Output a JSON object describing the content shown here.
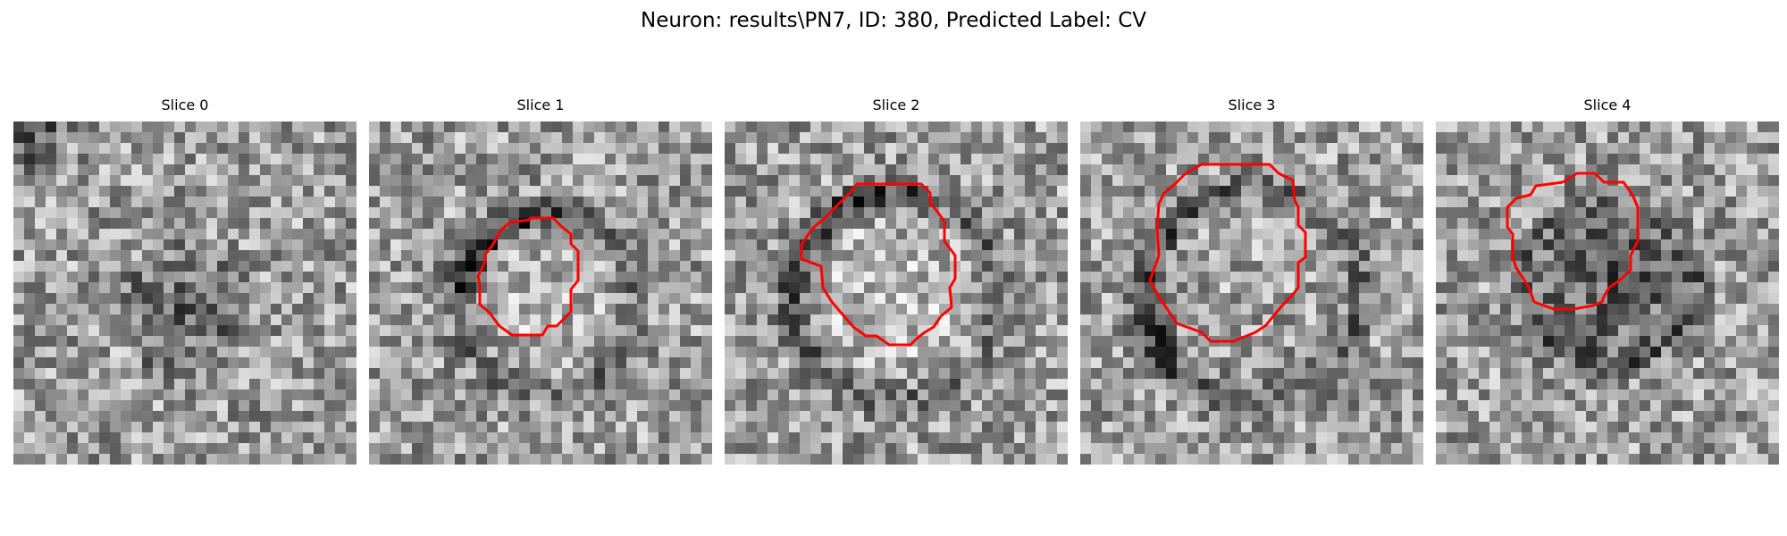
{
  "figure": {
    "title": "Neuron: results\\PN7, ID: 380, Predicted Label: CV"
  },
  "panels": [
    {
      "title": "Slice 0",
      "has_contour": false,
      "dark_blob": "faint-center"
    },
    {
      "title": "Slice 1",
      "has_contour": true,
      "dark_blob": "upper-left-rim"
    },
    {
      "title": "Slice 2",
      "has_contour": true,
      "dark_blob": "left-rim"
    },
    {
      "title": "Slice 3",
      "has_contour": true,
      "dark_blob": "left-rim"
    },
    {
      "title": "Slice 4",
      "has_contour": true,
      "dark_blob": "filled-center"
    }
  ],
  "style": {
    "contour_color": "#ff0000",
    "colormap": "grayscale",
    "grid_size": 32
  }
}
